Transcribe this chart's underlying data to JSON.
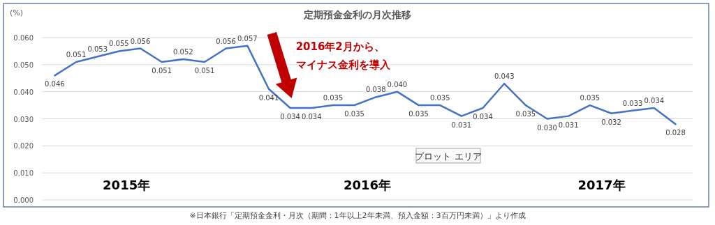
{
  "chart_data": {
    "type": "line",
    "title": "定期預金金利の月次推移",
    "ylabel": "(%)",
    "categories": [
      null,
      null,
      null,
      null,
      null,
      null,
      null,
      null,
      null,
      null,
      null,
      null,
      null,
      null,
      null,
      null,
      null,
      null,
      null,
      null,
      null,
      null,
      null,
      null,
      null,
      null,
      null,
      null,
      null,
      null
    ],
    "series": [
      {
        "color": "#4472c4",
        "values": [
          0.046,
          0.051,
          0.053,
          0.055,
          0.056,
          0.051,
          0.052,
          0.051,
          0.056,
          0.057,
          0.041,
          0.034,
          0.034,
          0.035,
          0.035,
          0.038,
          0.04,
          0.035,
          0.035,
          0.031,
          0.034,
          0.043,
          0.035,
          0.03,
          0.031,
          0.035,
          0.032,
          0.033,
          0.034,
          0.028
        ],
        "value_labels": [
          "0.046",
          "0.051",
          "0.053",
          "0.055",
          "0.056",
          "0.051",
          "0.052",
          "0.051",
          "0.056",
          "0.057",
          "0.041",
          "0.034",
          "0.034",
          "0.035",
          "0.035",
          "0.038",
          "0.040",
          "0.035",
          "0.035",
          "0.031",
          "0.034",
          "0.043",
          "0.035",
          "0.030",
          "0.031",
          "0.035",
          "0.032",
          "0.033",
          "0.034",
          "0.028"
        ]
      }
    ],
    "ylim": [
      0,
      0.06
    ],
    "yticks": [
      {
        "value": 0,
        "label": "0.000"
      },
      {
        "value": 0.01,
        "label": "0.010"
      },
      {
        "value": 0.02,
        "label": "0.020"
      },
      {
        "value": 0.03,
        "label": "0.030"
      },
      {
        "value": 0.04,
        "label": "0.040"
      },
      {
        "value": 0.05,
        "label": "0.050"
      },
      {
        "value": 0.06,
        "label": "0.060"
      }
    ],
    "tick_labels": "y",
    "grid": "y",
    "marker": "none",
    "line_style": "solid",
    "annotations": [
      "2015年",
      "2016年",
      "2017年",
      "2016年2月から、",
      "マイナス金利を導入",
      "プロット エリア",
      "※日本銀行「定期預金金利・月次（期間：1年以上2年未満、預入金額：3百万円未満）」より作成"
    ]
  }
}
